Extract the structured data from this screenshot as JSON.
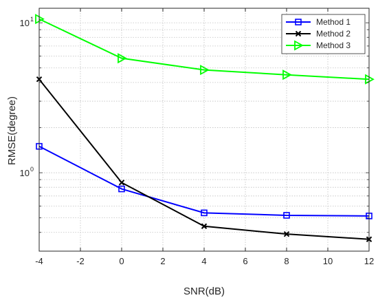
{
  "chart_data": {
    "type": "line",
    "xlabel": "SNR(dB)",
    "ylabel": "RMSE(degree)",
    "x": [
      -4,
      0,
      4,
      8,
      12
    ],
    "xlim": [
      -4,
      12
    ],
    "ylim": [
      0.3,
      12.5
    ],
    "yscale": "log",
    "xticks": [
      -4,
      -2,
      0,
      2,
      4,
      6,
      8,
      10,
      12
    ],
    "xtick_labels": [
      "-4",
      "-2",
      "0",
      "2",
      "4",
      "6",
      "8",
      "10",
      "12"
    ],
    "ytick_labels": [
      {
        "value": 1,
        "base": "10",
        "exp": "0"
      },
      {
        "value": 10,
        "base": "10",
        "exp": "1"
      }
    ],
    "grid": true,
    "legend_position": "top-right",
    "series": [
      {
        "name": "Method 1",
        "color": "#0000ff",
        "marker": "square",
        "values": [
          1.5,
          0.78,
          0.54,
          0.52,
          0.515
        ]
      },
      {
        "name": "Method 2",
        "color": "#000000",
        "marker": "x",
        "values": [
          4.2,
          0.86,
          0.44,
          0.39,
          0.36
        ]
      },
      {
        "name": "Method 3",
        "color": "#00ff00",
        "marker": "triangle-right",
        "values": [
          10.6,
          5.8,
          4.85,
          4.5,
          4.2
        ]
      }
    ]
  }
}
